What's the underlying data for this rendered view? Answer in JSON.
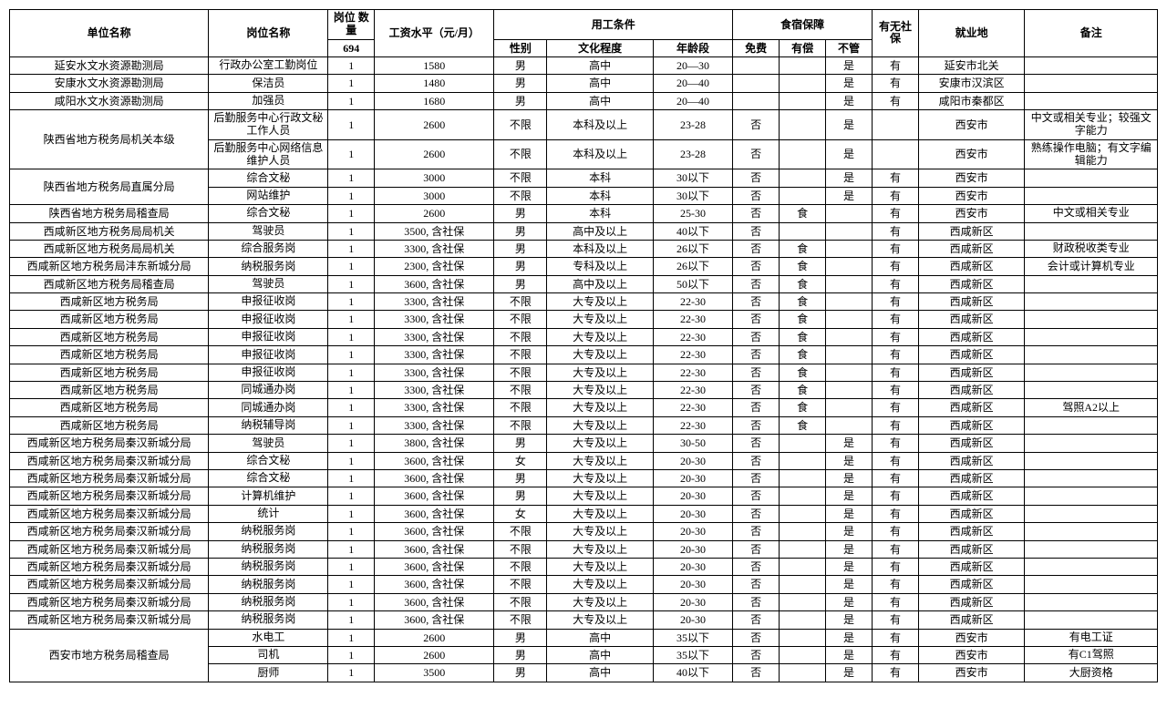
{
  "headers": {
    "unit": "单位名称",
    "position": "岗位名称",
    "quantity": "岗位\n数量",
    "quantity_total": "694",
    "salary": "工资水平（元/月）",
    "conditions": "用工条件",
    "gender": "性别",
    "education": "文化程度",
    "age": "年龄段",
    "lodging": "食宿保障",
    "free": "免费",
    "paid": "有偿",
    "none": "不管",
    "insurance": "有无社保",
    "location": "就业地",
    "remark": "备注"
  },
  "rows": [
    {
      "unit": "延安水文水资源勘测局",
      "pos": "行政办公室工勤岗位",
      "qty": "1",
      "salary": "1580",
      "gender": "男",
      "edu": "高中",
      "age": "20—30",
      "free": "",
      "paid": "",
      "none": "是",
      "ins": "有",
      "loc": "延安市北关",
      "remark": ""
    },
    {
      "unit": "安康水文水资源勘测局",
      "pos": "保洁员",
      "qty": "1",
      "salary": "1480",
      "gender": "男",
      "edu": "高中",
      "age": "20—40",
      "free": "",
      "paid": "",
      "none": "是",
      "ins": "有",
      "loc": "安康市汉滨区",
      "remark": ""
    },
    {
      "unit": "咸阳水文水资源勘测局",
      "pos": "加强员",
      "qty": "1",
      "salary": "1680",
      "gender": "男",
      "edu": "高中",
      "age": "20—40",
      "free": "",
      "paid": "",
      "none": "是",
      "ins": "有",
      "loc": "咸阳市秦都区",
      "remark": ""
    },
    {
      "unit": "陕西省地方税务局机关本级",
      "unit_rowspan": 2,
      "pos": "后勤服务中心行政文秘工作人员",
      "qty": "1",
      "salary": "2600",
      "gender": "不限",
      "edu": "本科及以上",
      "age": "23-28",
      "free": "否",
      "paid": "",
      "none": "是",
      "ins": "",
      "loc": "西安市",
      "remark": "中文或相关专业；较强文字能力"
    },
    {
      "pos": "后勤服务中心网络信息维护人员",
      "qty": "1",
      "salary": "2600",
      "gender": "不限",
      "edu": "本科及以上",
      "age": "23-28",
      "free": "否",
      "paid": "",
      "none": "是",
      "ins": "",
      "loc": "西安市",
      "remark": "熟练操作电脑；有文字编辑能力"
    },
    {
      "unit": "陕西省地方税务局直属分局",
      "unit_rowspan": 2,
      "pos": "综合文秘",
      "qty": "1",
      "salary": "3000",
      "gender": "不限",
      "edu": "本科",
      "age": "30以下",
      "free": "否",
      "paid": "",
      "none": "是",
      "ins": "有",
      "loc": "西安市",
      "remark": ""
    },
    {
      "pos": "网站维护",
      "qty": "1",
      "salary": "3000",
      "gender": "不限",
      "edu": "本科",
      "age": "30以下",
      "free": "否",
      "paid": "",
      "none": "是",
      "ins": "有",
      "loc": "西安市",
      "remark": ""
    },
    {
      "unit": "陕西省地方税务局稽查局",
      "pos": "综合文秘",
      "qty": "1",
      "salary": "2600",
      "gender": "男",
      "edu": "本科",
      "age": "25-30",
      "free": "否",
      "paid": "食",
      "none": "",
      "ins": "有",
      "loc": "西安市",
      "remark": "中文或相关专业"
    },
    {
      "unit": "西咸新区地方税务局局机关",
      "pos": "驾驶员",
      "qty": "1",
      "salary": "3500, 含社保",
      "gender": "男",
      "edu": "高中及以上",
      "age": "40以下",
      "free": "否",
      "paid": "",
      "none": "",
      "ins": "有",
      "loc": "西咸新区",
      "remark": ""
    },
    {
      "unit": "西咸新区地方税务局局机关",
      "pos": "综合服务岗",
      "qty": "1",
      "salary": "3300, 含社保",
      "gender": "男",
      "edu": "本科及以上",
      "age": "26以下",
      "free": "否",
      "paid": "食",
      "none": "",
      "ins": "有",
      "loc": "西咸新区",
      "remark": "财政税收类专业"
    },
    {
      "unit": "西咸新区地方税务局沣东新城分局",
      "pos": "纳税服务岗",
      "qty": "1",
      "salary": "2300, 含社保",
      "gender": "男",
      "edu": "专科及以上",
      "age": "26以下",
      "free": "否",
      "paid": "食",
      "none": "",
      "ins": "有",
      "loc": "西咸新区",
      "remark": "会计或计算机专业"
    },
    {
      "unit": "西咸新区地方税务局稽查局",
      "pos": "驾驶员",
      "qty": "1",
      "salary": "3600, 含社保",
      "gender": "男",
      "edu": "高中及以上",
      "age": "50以下",
      "free": "否",
      "paid": "食",
      "none": "",
      "ins": "有",
      "loc": "西咸新区",
      "remark": ""
    },
    {
      "unit": "西咸新区地方税务局",
      "pos": "申报征收岗",
      "qty": "1",
      "salary": "3300, 含社保",
      "gender": "不限",
      "edu": "大专及以上",
      "age": "22-30",
      "free": "否",
      "paid": "食",
      "none": "",
      "ins": "有",
      "loc": "西咸新区",
      "remark": ""
    },
    {
      "unit": "西咸新区地方税务局",
      "pos": "申报征收岗",
      "qty": "1",
      "salary": "3300, 含社保",
      "gender": "不限",
      "edu": "大专及以上",
      "age": "22-30",
      "free": "否",
      "paid": "食",
      "none": "",
      "ins": "有",
      "loc": "西咸新区",
      "remark": ""
    },
    {
      "unit": "西咸新区地方税务局",
      "pos": "申报征收岗",
      "qty": "1",
      "salary": "3300, 含社保",
      "gender": "不限",
      "edu": "大专及以上",
      "age": "22-30",
      "free": "否",
      "paid": "食",
      "none": "",
      "ins": "有",
      "loc": "西咸新区",
      "remark": ""
    },
    {
      "unit": "西咸新区地方税务局",
      "pos": "申报征收岗",
      "qty": "1",
      "salary": "3300, 含社保",
      "gender": "不限",
      "edu": "大专及以上",
      "age": "22-30",
      "free": "否",
      "paid": "食",
      "none": "",
      "ins": "有",
      "loc": "西咸新区",
      "remark": ""
    },
    {
      "unit": "西咸新区地方税务局",
      "pos": "申报征收岗",
      "qty": "1",
      "salary": "3300, 含社保",
      "gender": "不限",
      "edu": "大专及以上",
      "age": "22-30",
      "free": "否",
      "paid": "食",
      "none": "",
      "ins": "有",
      "loc": "西咸新区",
      "remark": ""
    },
    {
      "unit": "西咸新区地方税务局",
      "pos": "同城通办岗",
      "qty": "1",
      "salary": "3300, 含社保",
      "gender": "不限",
      "edu": "大专及以上",
      "age": "22-30",
      "free": "否",
      "paid": "食",
      "none": "",
      "ins": "有",
      "loc": "西咸新区",
      "remark": ""
    },
    {
      "unit": "西咸新区地方税务局",
      "pos": "同城通办岗",
      "qty": "1",
      "salary": "3300, 含社保",
      "gender": "不限",
      "edu": "大专及以上",
      "age": "22-30",
      "free": "否",
      "paid": "食",
      "none": "",
      "ins": "有",
      "loc": "西咸新区",
      "remark": "驾照A2以上"
    },
    {
      "unit": "西咸新区地方税务局",
      "pos": "纳税辅导岗",
      "qty": "1",
      "salary": "3300, 含社保",
      "gender": "不限",
      "edu": "大专及以上",
      "age": "22-30",
      "free": "否",
      "paid": "食",
      "none": "",
      "ins": "有",
      "loc": "西咸新区",
      "remark": ""
    },
    {
      "unit": "西咸新区地方税务局秦汉新城分局",
      "pos": "驾驶员",
      "qty": "1",
      "salary": "3800, 含社保",
      "gender": "男",
      "edu": "大专及以上",
      "age": "30-50",
      "free": "否",
      "paid": "",
      "none": "是",
      "ins": "有",
      "loc": "西咸新区",
      "remark": ""
    },
    {
      "unit": "西咸新区地方税务局秦汉新城分局",
      "pos": "综合文秘",
      "qty": "1",
      "salary": "3600, 含社保",
      "gender": "女",
      "edu": "大专及以上",
      "age": "20-30",
      "free": "否",
      "paid": "",
      "none": "是",
      "ins": "有",
      "loc": "西咸新区",
      "remark": ""
    },
    {
      "unit": "西咸新区地方税务局秦汉新城分局",
      "pos": "综合文秘",
      "qty": "1",
      "salary": "3600, 含社保",
      "gender": "男",
      "edu": "大专及以上",
      "age": "20-30",
      "free": "否",
      "paid": "",
      "none": "是",
      "ins": "有",
      "loc": "西咸新区",
      "remark": ""
    },
    {
      "unit": "西咸新区地方税务局秦汉新城分局",
      "pos": "计算机维护",
      "qty": "1",
      "salary": "3600, 含社保",
      "gender": "男",
      "edu": "大专及以上",
      "age": "20-30",
      "free": "否",
      "paid": "",
      "none": "是",
      "ins": "有",
      "loc": "西咸新区",
      "remark": ""
    },
    {
      "unit": "西咸新区地方税务局秦汉新城分局",
      "pos": "统计",
      "qty": "1",
      "salary": "3600, 含社保",
      "gender": "女",
      "edu": "大专及以上",
      "age": "20-30",
      "free": "否",
      "paid": "",
      "none": "是",
      "ins": "有",
      "loc": "西咸新区",
      "remark": ""
    },
    {
      "unit": "西咸新区地方税务局秦汉新城分局",
      "pos": "纳税服务岗",
      "qty": "1",
      "salary": "3600, 含社保",
      "gender": "不限",
      "edu": "大专及以上",
      "age": "20-30",
      "free": "否",
      "paid": "",
      "none": "是",
      "ins": "有",
      "loc": "西咸新区",
      "remark": ""
    },
    {
      "unit": "西咸新区地方税务局秦汉新城分局",
      "pos": "纳税服务岗",
      "qty": "1",
      "salary": "3600, 含社保",
      "gender": "不限",
      "edu": "大专及以上",
      "age": "20-30",
      "free": "否",
      "paid": "",
      "none": "是",
      "ins": "有",
      "loc": "西咸新区",
      "remark": ""
    },
    {
      "unit": "西咸新区地方税务局秦汉新城分局",
      "pos": "纳税服务岗",
      "qty": "1",
      "salary": "3600, 含社保",
      "gender": "不限",
      "edu": "大专及以上",
      "age": "20-30",
      "free": "否",
      "paid": "",
      "none": "是",
      "ins": "有",
      "loc": "西咸新区",
      "remark": ""
    },
    {
      "unit": "西咸新区地方税务局秦汉新城分局",
      "pos": "纳税服务岗",
      "qty": "1",
      "salary": "3600, 含社保",
      "gender": "不限",
      "edu": "大专及以上",
      "age": "20-30",
      "free": "否",
      "paid": "",
      "none": "是",
      "ins": "有",
      "loc": "西咸新区",
      "remark": ""
    },
    {
      "unit": "西咸新区地方税务局秦汉新城分局",
      "pos": "纳税服务岗",
      "qty": "1",
      "salary": "3600, 含社保",
      "gender": "不限",
      "edu": "大专及以上",
      "age": "20-30",
      "free": "否",
      "paid": "",
      "none": "是",
      "ins": "有",
      "loc": "西咸新区",
      "remark": ""
    },
    {
      "unit": "西咸新区地方税务局秦汉新城分局",
      "pos": "纳税服务岗",
      "qty": "1",
      "salary": "3600, 含社保",
      "gender": "不限",
      "edu": "大专及以上",
      "age": "20-30",
      "free": "否",
      "paid": "",
      "none": "是",
      "ins": "有",
      "loc": "西咸新区",
      "remark": ""
    },
    {
      "unit": "西安市地方税务局稽查局",
      "unit_rowspan": 3,
      "pos": "水电工",
      "qty": "1",
      "salary": "2600",
      "gender": "男",
      "edu": "高中",
      "age": "35以下",
      "free": "否",
      "paid": "",
      "none": "是",
      "ins": "有",
      "loc": "西安市",
      "remark": "有电工证"
    },
    {
      "pos": "司机",
      "qty": "1",
      "salary": "2600",
      "gender": "男",
      "edu": "高中",
      "age": "35以下",
      "free": "否",
      "paid": "",
      "none": "是",
      "ins": "有",
      "loc": "西安市",
      "remark": "有C1驾照"
    },
    {
      "pos": "厨师",
      "qty": "1",
      "salary": "3500",
      "gender": "男",
      "edu": "高中",
      "age": "40以下",
      "free": "否",
      "paid": "",
      "none": "是",
      "ins": "有",
      "loc": "西安市",
      "remark": "大厨资格"
    }
  ]
}
